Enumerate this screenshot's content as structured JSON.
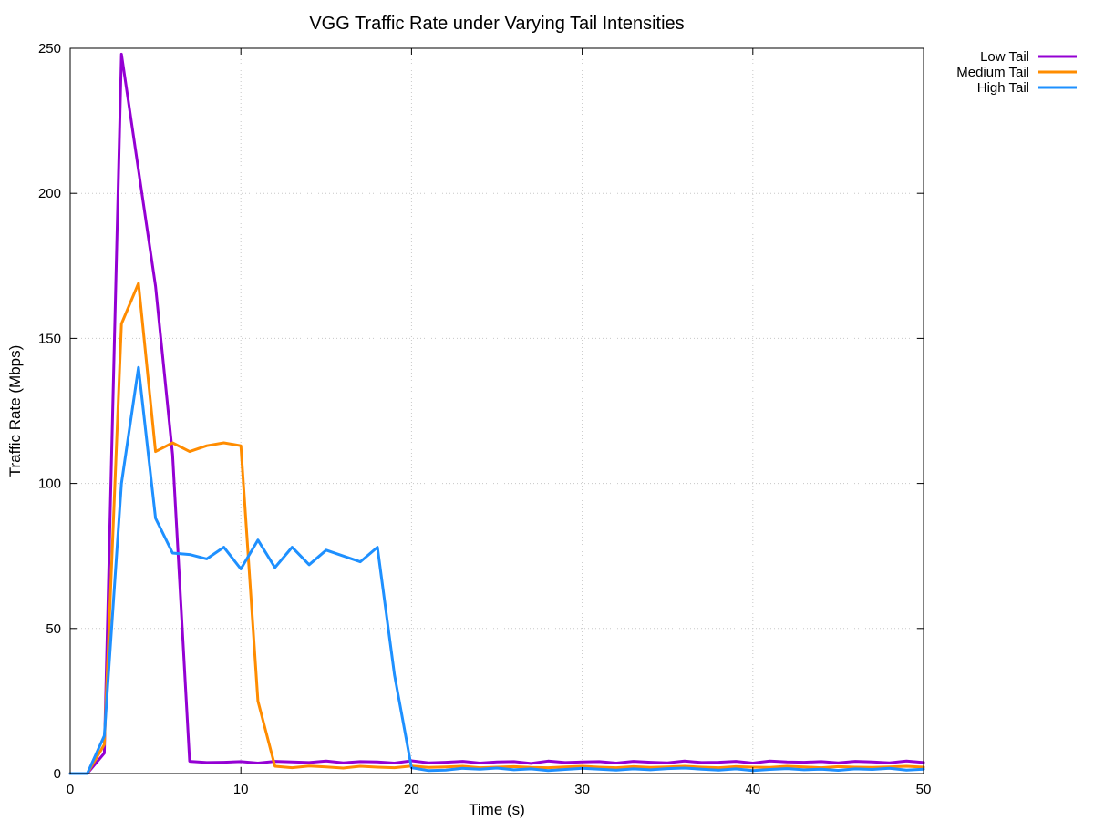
{
  "chart_data": {
    "type": "line",
    "title": "VGG Traffic Rate under Varying Tail Intensities",
    "xlabel": "Time (s)",
    "ylabel": "Traffic Rate (Mbps)",
    "xlim": [
      0,
      50
    ],
    "ylim": [
      0,
      250
    ],
    "xticks": [
      0,
      10,
      20,
      30,
      40,
      50
    ],
    "yticks": [
      0,
      50,
      100,
      150,
      200,
      250
    ],
    "grid": true,
    "legend_position": "outside-top-right",
    "x": [
      0,
      1,
      2,
      3,
      4,
      5,
      6,
      7,
      8,
      9,
      10,
      11,
      12,
      13,
      14,
      15,
      16,
      17,
      18,
      19,
      20,
      21,
      22,
      23,
      24,
      25,
      26,
      27,
      28,
      29,
      30,
      31,
      32,
      33,
      34,
      35,
      36,
      37,
      38,
      39,
      40,
      41,
      42,
      43,
      44,
      45,
      46,
      47,
      48,
      49,
      50
    ],
    "series": [
      {
        "name": "Low Tail",
        "color": "#9400d3",
        "values": [
          0,
          0,
          7,
          248,
          208,
          168,
          110,
          4.2,
          3.8,
          3.9,
          4.1,
          3.6,
          4.2,
          4.0,
          3.8,
          4.3,
          3.7,
          4.1,
          4.0,
          3.6,
          4.4,
          3.7,
          3.9,
          4.2,
          3.6,
          4.0,
          4.1,
          3.5,
          4.3,
          3.8,
          4.0,
          4.1,
          3.6,
          4.2,
          3.9,
          3.7,
          4.3,
          3.8,
          3.9,
          4.2,
          3.6,
          4.3,
          4.0,
          3.9,
          4.1,
          3.7,
          4.2,
          4.0,
          3.7,
          4.3,
          3.8
        ]
      },
      {
        "name": "Medium Tail",
        "color": "#ff8c00",
        "values": [
          0,
          0,
          10,
          155,
          169,
          111,
          114,
          111,
          113,
          114,
          113,
          25,
          2.5,
          2.0,
          2.6,
          2.3,
          1.9,
          2.5,
          2.2,
          2.0,
          2.6,
          2.1,
          2.3,
          2.5,
          2.0,
          2.2,
          2.4,
          2.1,
          2.0,
          2.3,
          2.5,
          2.2,
          2.0,
          2.4,
          2.1,
          2.3,
          2.5,
          2.2,
          2.0,
          2.4,
          2.2,
          2.1,
          2.5,
          2.3,
          2.0,
          2.4,
          2.2,
          2.1,
          2.3,
          2.5,
          2.2
        ]
      },
      {
        "name": "High Tail",
        "color": "#1e90ff",
        "values": [
          0,
          0,
          13,
          100,
          140,
          88,
          76,
          75.5,
          74,
          78,
          70.5,
          80.5,
          71,
          78,
          72,
          77,
          75,
          73,
          78,
          34,
          2.0,
          1.0,
          1.2,
          1.8,
          1.5,
          1.9,
          1.3,
          1.6,
          1.0,
          1.4,
          1.8,
          1.5,
          1.2,
          1.6,
          1.3,
          1.7,
          1.9,
          1.5,
          1.2,
          1.6,
          1.0,
          1.4,
          1.7,
          1.3,
          1.5,
          1.1,
          1.6,
          1.4,
          1.8,
          1.2,
          1.5
        ]
      }
    ]
  }
}
